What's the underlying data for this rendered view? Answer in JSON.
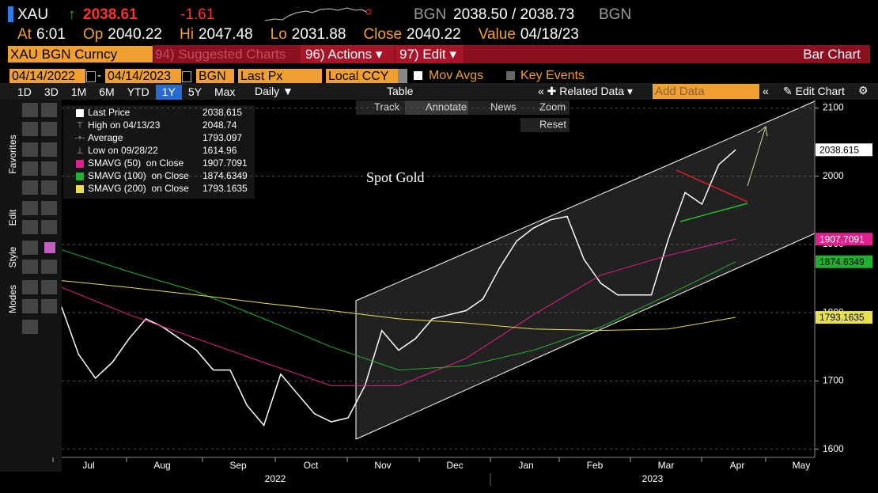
{
  "header": {
    "ticker": "XAU",
    "arrow": "↑",
    "last": "2038.61",
    "change": "-1.61",
    "source": "BGN",
    "bid_ask": "2038.50 / 2038.73",
    "source2": "BGN",
    "stats": [
      {
        "label": "At",
        "value": "6:01"
      },
      {
        "label": "Op",
        "value": "2040.22"
      },
      {
        "label": "Hi",
        "value": "2047.48"
      },
      {
        "label": "Lo",
        "value": "2031.88"
      },
      {
        "label": "Close",
        "value": "2040.22"
      },
      {
        "label": "Value",
        "value": "04/18/23"
      }
    ]
  },
  "menu": {
    "security": "XAU BGN Curncy",
    "suggested": "94) Suggested Charts",
    "actions": "96) Actions",
    "edit": "97) Edit",
    "chart_type": "Bar Chart"
  },
  "controls": {
    "start": "04/14/2022",
    "end": "04/14/2023",
    "source": "BGN",
    "field": "Last Px",
    "currency": "Local CCY",
    "mov_avgs": "Mov Avgs",
    "key_events": "Key Events"
  },
  "toolbar": {
    "periods": [
      "1D",
      "3D",
      "1M",
      "6M",
      "YTD",
      "1Y",
      "5Y",
      "Max"
    ],
    "frequency": "Daily",
    "table": "Table",
    "related": "Related Data",
    "add_data": "Add Data",
    "edit_chart": "Edit Chart"
  },
  "side_tabs": [
    "Favorites",
    "Edit",
    "Style",
    "Modes"
  ],
  "chart_tools": [
    "Track",
    "Annotate",
    "News",
    "Zoom",
    "Reset"
  ],
  "chart_data": {
    "type": "line",
    "annotation": "Spot Gold",
    "series": [
      {
        "name": "Last Price",
        "color": "#ffffff",
        "values": [
          1808,
          1739,
          1704,
          1727,
          1762,
          1791,
          1779,
          1762,
          1745,
          1716,
          1716,
          1664,
          1635,
          1710,
          1681,
          1652,
          1640,
          1646,
          1693,
          1774,
          1745,
          1762,
          1791,
          1797,
          1803,
          1820,
          1866,
          1905,
          1924,
          1936,
          1941,
          1878,
          1843,
          1826,
          1826,
          1826,
          1907,
          1976,
          1959,
          2017,
          2038.615
        ]
      },
      {
        "name": "SMAVG (50)  on Close",
        "color": "#e0208c",
        "values": [
          1837,
          1797,
          1762,
          1727,
          1693,
          1693,
          1733,
          1797,
          1855,
          1884,
          1907.7091
        ]
      },
      {
        "name": "SMAVG (100)  on Close",
        "color": "#22b030",
        "values": [
          1892,
          1860,
          1831,
          1791,
          1750,
          1716,
          1722,
          1745,
          1779,
          1826,
          1874.6349
        ]
      },
      {
        "name": "SMAVG (200)  on Close",
        "color": "#e8e050",
        "values": [
          1847,
          1837,
          1826,
          1814,
          1803,
          1791,
          1785,
          1776,
          1774,
          1776,
          1793.1635
        ]
      }
    ],
    "stats": [
      {
        "label": "High on 04/13/23",
        "value": 2048.74
      },
      {
        "label": "Average",
        "value": 1793.097
      },
      {
        "label": "Low on 09/28/22",
        "value": 1614.96
      }
    ],
    "ylim": [
      1588,
      2112
    ],
    "yticks": [
      1600,
      1700,
      1800,
      1900,
      2000,
      2100
    ],
    "grid": true,
    "months": [
      "Jul",
      "Aug",
      "Sep",
      "Oct",
      "Nov",
      "Dec",
      "Jan",
      "Feb",
      "Mar",
      "Apr",
      "May"
    ],
    "years": [
      "2022",
      "2023"
    ]
  }
}
